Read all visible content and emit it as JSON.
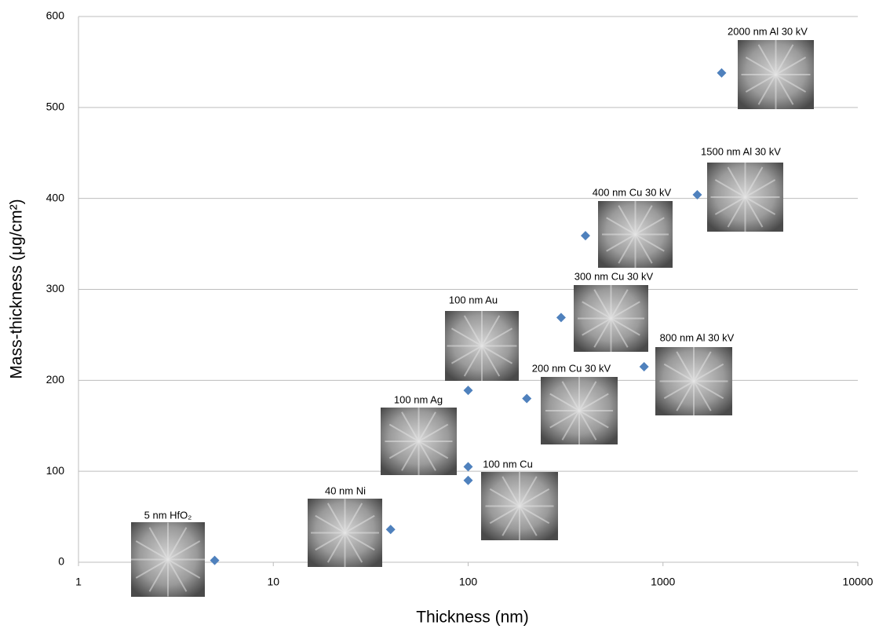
{
  "chart_data": {
    "type": "scatter",
    "x_label": "Thickness (nm)",
    "y_label": "Mass-thickness (μg/cm²)",
    "x": [
      5,
      40,
      100,
      100,
      100,
      200,
      300,
      400,
      800,
      1500,
      2000
    ],
    "series": [
      {
        "color": "#4f81bd",
        "values": [
          2,
          36,
          90,
          105,
          189,
          180,
          269,
          359,
          215,
          404,
          538
        ]
      }
    ],
    "xlim": [
      1,
      10000
    ],
    "xticks": [
      1,
      10,
      100,
      1000,
      10000
    ],
    "xscale": "log",
    "ylim": [
      0,
      600
    ],
    "yticks": [
      0,
      100,
      200,
      300,
      400,
      500,
      600
    ],
    "grid": true,
    "annotations": [
      "5 nm HfO₂",
      "40 nm Ni",
      "100 nm Ag",
      "100 nm Au",
      "100 nm Cu",
      "200 nm Cu 30 kV",
      "300 nm Cu 30 kV",
      "400 nm Cu 30 kV",
      "800 nm Al 30 kV",
      "1500 nm Al 30 kV",
      "2000 nm Al 30 kV"
    ]
  }
}
